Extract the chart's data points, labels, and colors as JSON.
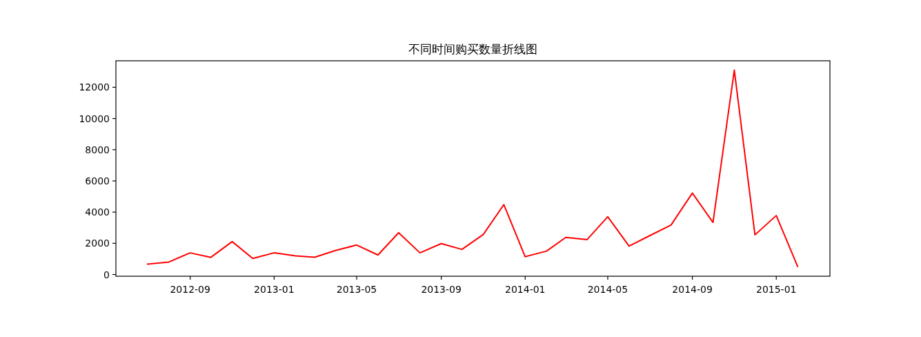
{
  "chart_data": {
    "type": "line",
    "title": "不同时间购买数量折线图",
    "x": [
      "2012-07",
      "2012-08",
      "2012-09",
      "2012-10",
      "2012-11",
      "2012-12",
      "2013-01",
      "2013-02",
      "2013-03",
      "2013-04",
      "2013-05",
      "2013-06",
      "2013-07",
      "2013-08",
      "2013-09",
      "2013-10",
      "2013-11",
      "2013-12",
      "2014-01",
      "2014-02",
      "2014-03",
      "2014-04",
      "2014-05",
      "2014-06",
      "2014-07",
      "2014-08",
      "2014-09",
      "2014-10",
      "2014-11",
      "2014-12",
      "2015-01",
      "2015-02"
    ],
    "series": [
      {
        "color": "#ff0000",
        "values": [
          670,
          800,
          1390,
          1100,
          2110,
          1030,
          1390,
          1200,
          1110,
          1550,
          1890,
          1250,
          2680,
          1390,
          1980,
          1610,
          2560,
          4480,
          1140,
          1500,
          2380,
          2240,
          3700,
          1820,
          2490,
          3170,
          5220,
          3340,
          13100,
          2540,
          3780,
          520
        ]
      }
    ],
    "xlim": [
      "2012-05-16",
      "2015-03-20"
    ],
    "ylim": [
      -110,
      13700
    ],
    "xticks": [
      "2012-09",
      "2013-01",
      "2013-05",
      "2013-09",
      "2014-01",
      "2014-05",
      "2014-09",
      "2015-01"
    ],
    "yticks": [
      0,
      2000,
      4000,
      6000,
      8000,
      10000,
      12000
    ],
    "line_style": "solid"
  }
}
